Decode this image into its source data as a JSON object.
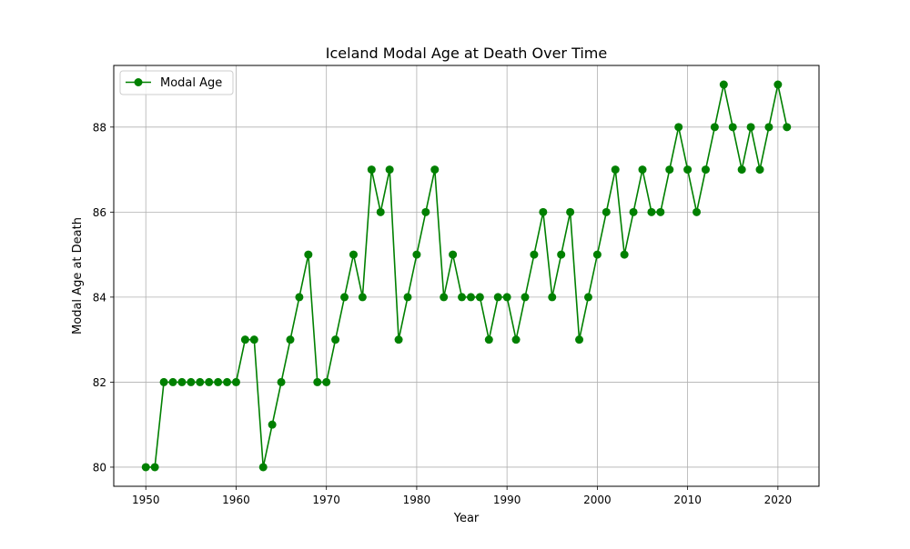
{
  "chart_data": {
    "type": "line",
    "title": "Iceland Modal Age at Death Over Time",
    "xlabel": "Year",
    "ylabel": "Modal Age at Death",
    "xlim": [
      1946.45,
      2024.55
    ],
    "ylim": [
      79.55,
      89.45
    ],
    "x_ticks": [
      1950,
      1960,
      1970,
      1980,
      1990,
      2000,
      2010,
      2020
    ],
    "y_ticks": [
      80,
      82,
      84,
      86,
      88
    ],
    "grid": true,
    "legend_position": "top-left",
    "series": [
      {
        "name": "Modal Age",
        "color": "#008000",
        "marker": "circle",
        "x": [
          1950,
          1951,
          1952,
          1953,
          1954,
          1955,
          1956,
          1957,
          1958,
          1959,
          1960,
          1961,
          1962,
          1963,
          1964,
          1965,
          1966,
          1967,
          1968,
          1969,
          1970,
          1971,
          1972,
          1973,
          1974,
          1975,
          1976,
          1977,
          1978,
          1979,
          1980,
          1981,
          1982,
          1983,
          1984,
          1985,
          1986,
          1987,
          1988,
          1989,
          1990,
          1991,
          1992,
          1993,
          1994,
          1995,
          1996,
          1997,
          1998,
          1999,
          2000,
          2001,
          2002,
          2003,
          2004,
          2005,
          2006,
          2007,
          2008,
          2009,
          2010,
          2011,
          2012,
          2013,
          2014,
          2015,
          2016,
          2017,
          2018,
          2019,
          2020,
          2021
        ],
        "values": [
          80,
          80,
          82,
          82,
          82,
          82,
          82,
          82,
          82,
          82,
          82,
          83,
          83,
          80,
          81,
          82,
          83,
          84,
          85,
          82,
          82,
          83,
          84,
          85,
          84,
          87,
          86,
          87,
          83,
          84,
          85,
          86,
          87,
          84,
          85,
          84,
          84,
          84,
          83,
          84,
          84,
          83,
          84,
          85,
          86,
          84,
          85,
          86,
          83,
          84,
          85,
          86,
          87,
          85,
          86,
          87,
          86,
          86,
          87,
          88,
          87,
          86,
          87,
          88,
          89,
          88,
          87,
          88,
          87,
          88,
          89,
          88
        ]
      }
    ]
  }
}
